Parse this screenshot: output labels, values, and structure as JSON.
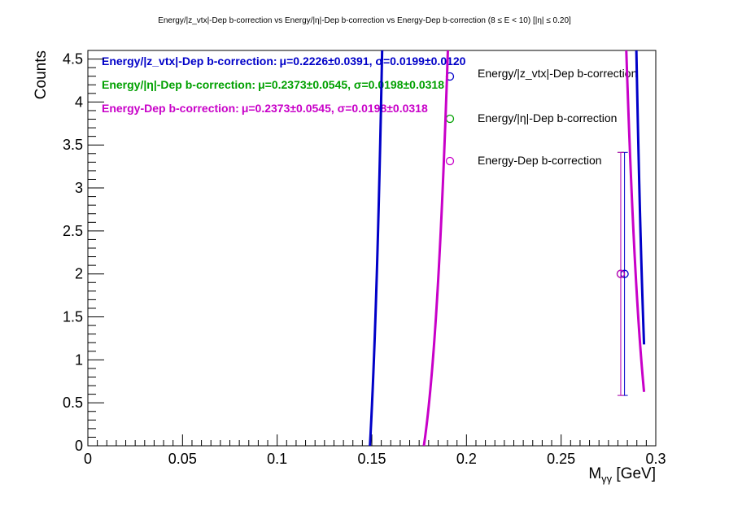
{
  "chart_data": {
    "type": "line",
    "title": "Energy/|z_vtx|-Dep b-correction vs Energy/|η|-Dep b-correction vs Energy-Dep b-correction   (8 ≤ E < 10)   [|η| ≤ 0.20]",
    "xlabel": "M_γγ [GeV]",
    "ylabel": "Counts",
    "xlim": [
      0,
      0.3
    ],
    "ylim": [
      0,
      4.6
    ],
    "x_ticks": [
      0,
      0.05,
      0.1,
      0.15,
      0.2,
      0.25,
      0.3
    ],
    "x_tick_labels": [
      "0",
      "0.05",
      "0.1",
      "0.15",
      "0.2",
      "0.25",
      "0.3"
    ],
    "y_ticks": [
      0,
      0.5,
      1,
      1.5,
      2,
      2.5,
      3,
      3.5,
      4,
      4.5
    ],
    "y_tick_labels": [
      "0",
      "0.5",
      "1",
      "1.5",
      "2",
      "2.5",
      "3",
      "3.5",
      "4",
      "4.5"
    ],
    "series": [
      {
        "name": "Energy/|z_vtx|-Dep b-correction",
        "color": "#0000c8",
        "fit_mu": 0.2226,
        "fit_sigma": 0.0199,
        "fit_amplitude": 2000,
        "fit_zero_left": 0.149,
        "fit_zero_right": 0.2938,
        "points": [
          {
            "x": 0.2835,
            "y": 2,
            "yerr": 1.414
          }
        ]
      },
      {
        "name": "Energy/|η|-Dep b-correction",
        "color": "#00a000",
        "fit_mu": 0.2373,
        "fit_sigma": 0.0198,
        "fit_amplitude": 95,
        "fit_zero_left": 0.1775,
        "fit_zero_right": 0.2938,
        "points": [
          {
            "x": 0.2815,
            "y": 2,
            "yerr": 1.414
          }
        ]
      },
      {
        "name": "Energy-Dep b-correction",
        "color": "#c800c8",
        "fit_mu": 0.2373,
        "fit_sigma": 0.0198,
        "fit_amplitude": 95,
        "fit_zero_left": 0.1775,
        "fit_zero_right": 0.2938,
        "points": [
          {
            "x": 0.2815,
            "y": 2,
            "yerr": 1.414
          }
        ]
      }
    ],
    "stats": [
      {
        "label": "Energy/|z_vtx|-Dep b-correction:",
        "values": "μ=0.2226±0.0391, σ=0.0199±0.0120",
        "color": "#0000c8"
      },
      {
        "label": "Energy/|η|-Dep b-correction:",
        "values": "μ=0.2373±0.0545, σ=0.0198±0.0318",
        "color": "#00a000"
      },
      {
        "label": "Energy-Dep b-correction:",
        "values": "μ=0.2373±0.0545, σ=0.0198±0.0318",
        "color": "#c800c8"
      }
    ],
    "legend": {
      "position": "top-right",
      "entries": [
        {
          "name": "Energy/|z_vtx|-Dep b-correction",
          "color": "#0000c8"
        },
        {
          "name": "Energy/|η|-Dep b-correction",
          "color": "#00a000"
        },
        {
          "name": "Energy-Dep b-correction",
          "color": "#c800c8"
        }
      ]
    }
  }
}
